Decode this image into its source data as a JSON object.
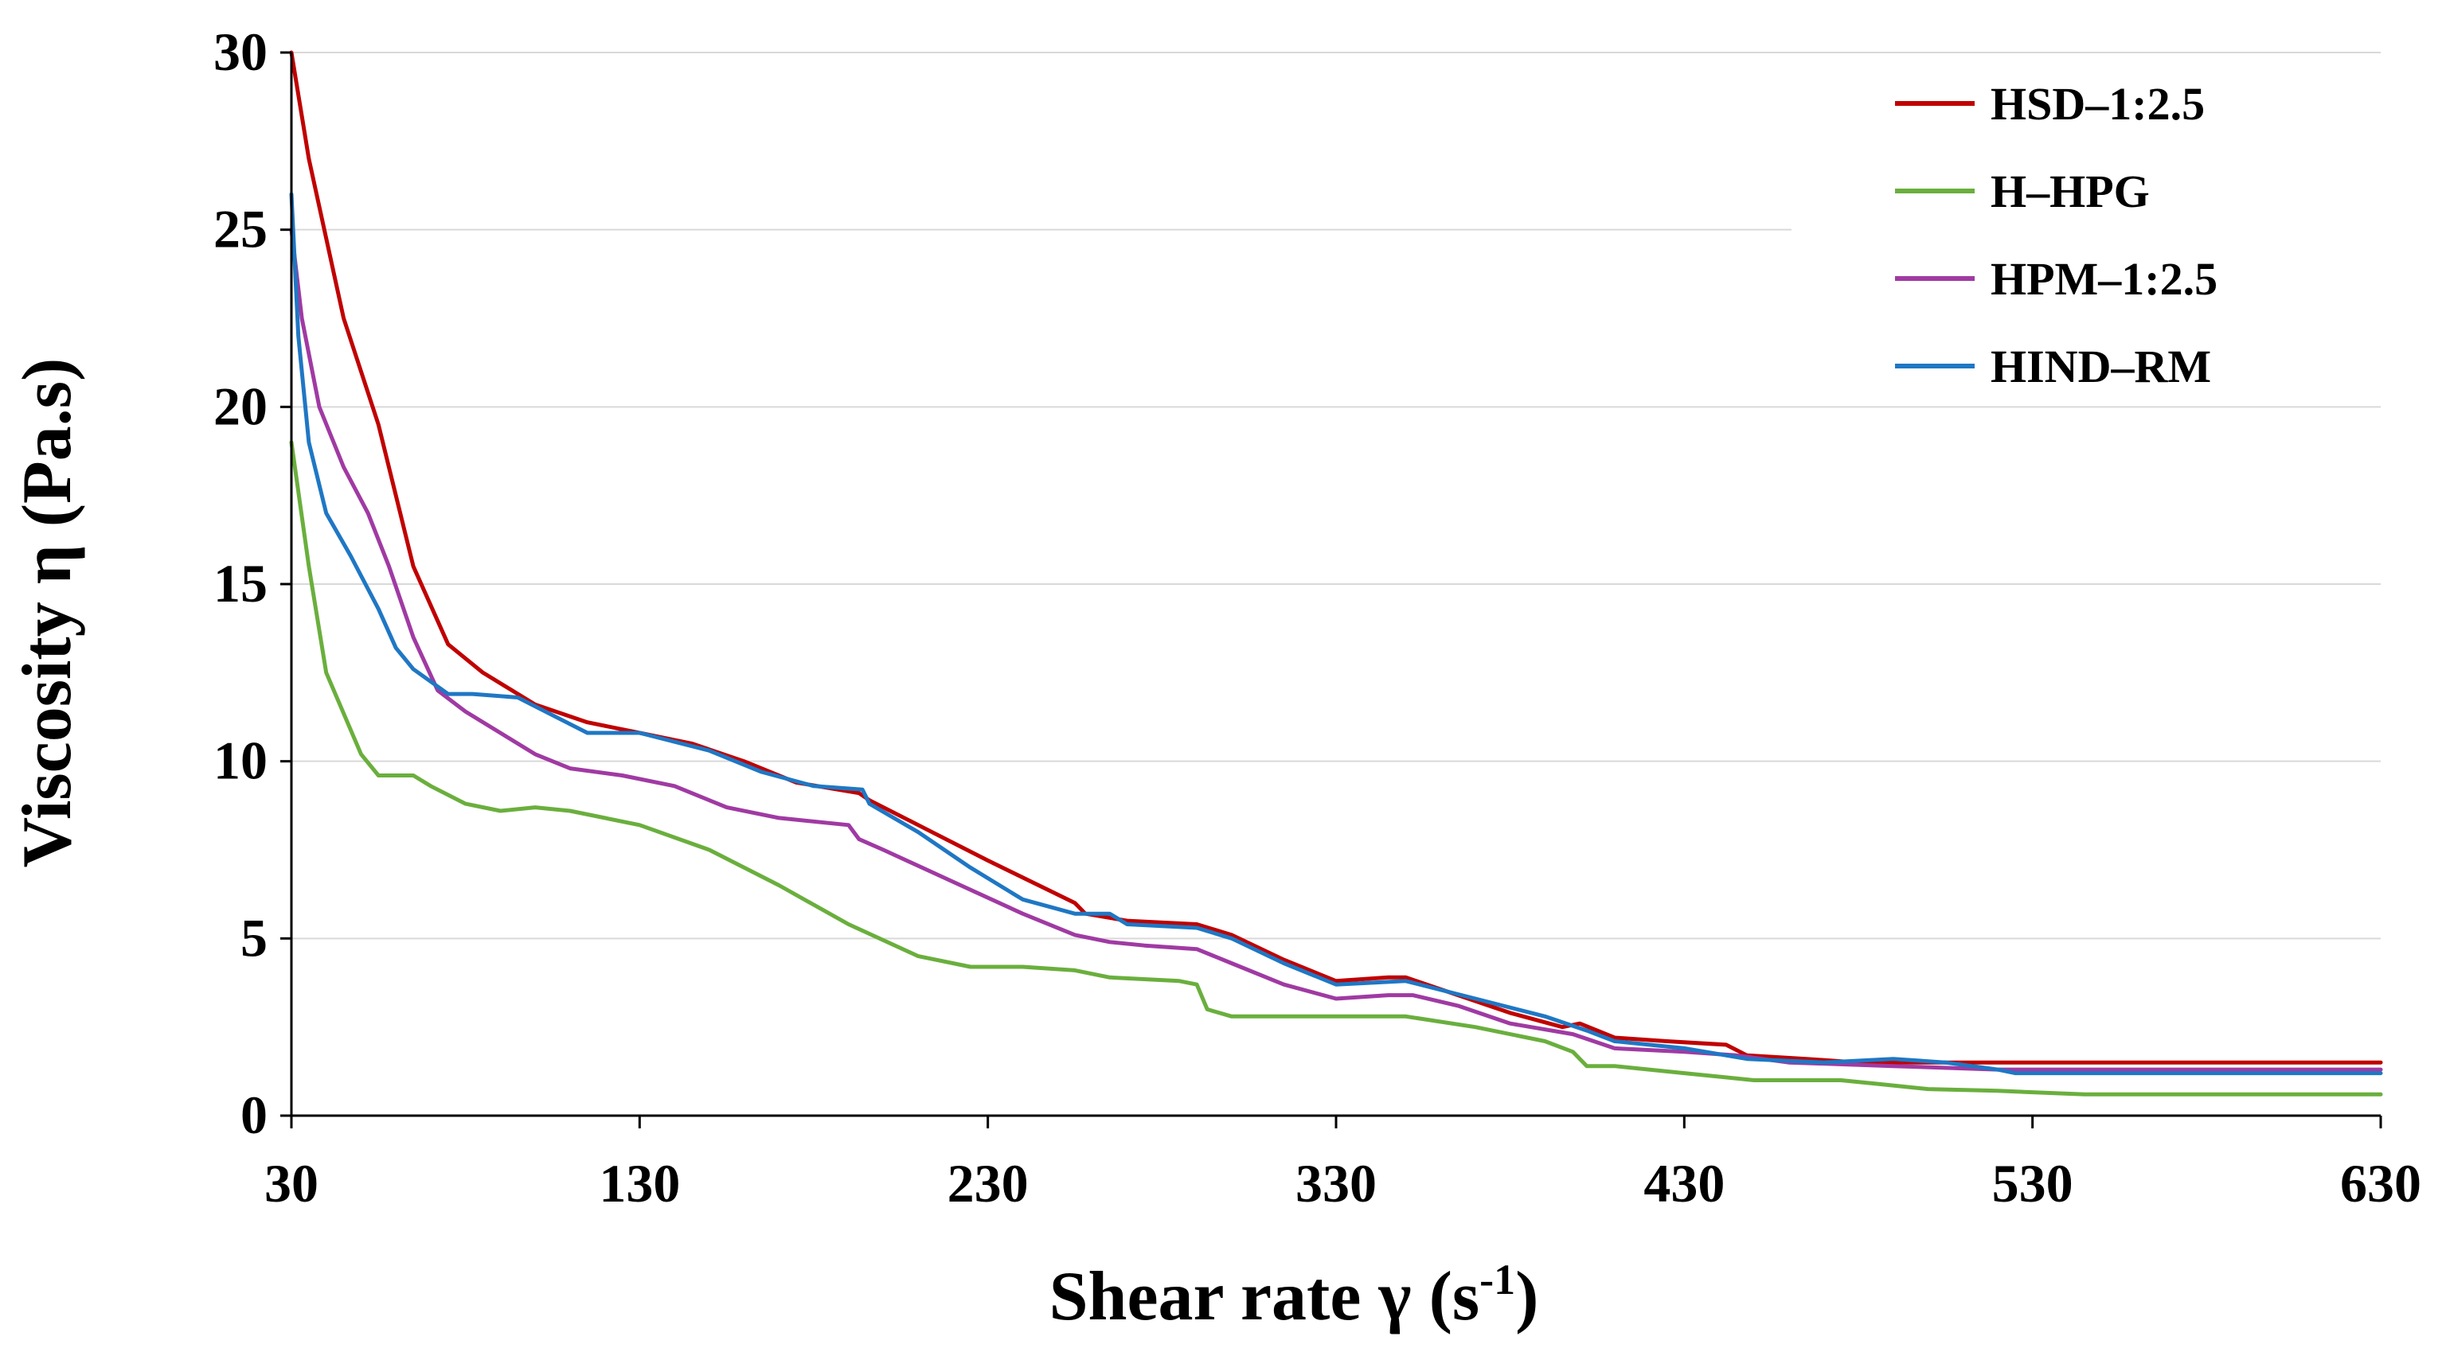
{
  "chart_data": {
    "type": "line",
    "title": "",
    "xlabel": "Shear rate γ (s",
    "xlabel_superscript": "-1",
    "xlabel_suffix": ")",
    "ylabel": "Viscosity η (Pa.s)",
    "xlim": [
      30,
      630
    ],
    "ylim": [
      0,
      30
    ],
    "x_ticks": [
      30,
      130,
      230,
      330,
      430,
      530,
      630
    ],
    "y_ticks": [
      0,
      5,
      10,
      15,
      20,
      25,
      30
    ],
    "grid": true,
    "legend_position": "top-right",
    "series": [
      {
        "name": "HSD–1:2.5",
        "color": "#c00000",
        "x": [
          30,
          35,
          45,
          55,
          65,
          75,
          85,
          100,
          115,
          130,
          145,
          160,
          175,
          193,
          196,
          210,
          230,
          255,
          258,
          270,
          290,
          300,
          315,
          330,
          345,
          350,
          365,
          380,
          395,
          400,
          410,
          425,
          442,
          448,
          465,
          480,
          500,
          530,
          580,
          630
        ],
        "y": [
          30,
          27,
          22.5,
          19.5,
          15.5,
          13.3,
          12.5,
          11.6,
          11.1,
          10.8,
          10.5,
          10.0,
          9.4,
          9.1,
          8.9,
          8.2,
          7.2,
          6.0,
          5.7,
          5.5,
          5.4,
          5.1,
          4.4,
          3.8,
          3.9,
          3.9,
          3.4,
          2.9,
          2.5,
          2.6,
          2.2,
          2.1,
          2.0,
          1.7,
          1.6,
          1.5,
          1.5,
          1.5,
          1.5,
          1.5
        ]
      },
      {
        "name": "H–HPG",
        "color": "#6aaf3d",
        "x": [
          30,
          35,
          40,
          50,
          55,
          65,
          70,
          80,
          90,
          100,
          110,
          130,
          150,
          170,
          190,
          210,
          225,
          240,
          255,
          265,
          285,
          290,
          293,
          300,
          320,
          350,
          370,
          390,
          398,
          402,
          410,
          430,
          450,
          475,
          485,
          500,
          520,
          545,
          630
        ],
        "y": [
          19,
          15.5,
          12.5,
          10.2,
          9.6,
          9.6,
          9.3,
          8.8,
          8.6,
          8.7,
          8.6,
          8.2,
          7.5,
          6.5,
          5.4,
          4.5,
          4.2,
          4.2,
          4.1,
          3.9,
          3.8,
          3.7,
          3.0,
          2.8,
          2.8,
          2.8,
          2.5,
          2.1,
          1.8,
          1.4,
          1.4,
          1.2,
          1.0,
          1.0,
          0.9,
          0.75,
          0.7,
          0.6,
          0.6
        ]
      },
      {
        "name": "HPM–1:2.5",
        "color": "#a03aa3",
        "x": [
          30,
          33,
          38,
          45,
          52,
          58,
          65,
          72,
          80,
          90,
          100,
          110,
          125,
          140,
          155,
          170,
          190,
          193,
          200,
          220,
          240,
          255,
          265,
          275,
          290,
          300,
          315,
          330,
          345,
          352,
          365,
          380,
          398,
          410,
          430,
          445,
          460,
          490,
          520,
          630
        ],
        "y": [
          25,
          22.5,
          20,
          18.3,
          17,
          15.5,
          13.5,
          12,
          11.4,
          10.8,
          10.2,
          9.8,
          9.6,
          9.3,
          8.7,
          8.4,
          8.2,
          7.8,
          7.5,
          6.6,
          5.7,
          5.1,
          4.9,
          4.8,
          4.7,
          4.3,
          3.7,
          3.3,
          3.4,
          3.4,
          3.1,
          2.6,
          2.3,
          1.9,
          1.8,
          1.7,
          1.5,
          1.4,
          1.3,
          1.3
        ]
      },
      {
        "name": "HIND–RM",
        "color": "#1f77c4",
        "x": [
          30,
          32,
          35,
          40,
          47,
          55,
          60,
          65,
          75,
          82,
          95,
          105,
          115,
          130,
          150,
          165,
          180,
          194,
          196,
          210,
          225,
          240,
          255,
          265,
          270,
          290,
          300,
          315,
          330,
          350,
          370,
          390,
          402,
          410,
          430,
          448,
          470,
          490,
          505,
          520,
          525,
          630
        ],
        "y": [
          26,
          22,
          19,
          17,
          15.8,
          14.3,
          13.2,
          12.6,
          11.9,
          11.9,
          11.8,
          11.3,
          10.8,
          10.8,
          10.3,
          9.7,
          9.3,
          9.2,
          8.8,
          8.0,
          7.0,
          6.1,
          5.7,
          5.7,
          5.4,
          5.3,
          5.0,
          4.3,
          3.7,
          3.8,
          3.3,
          2.8,
          2.4,
          2.1,
          1.9,
          1.6,
          1.5,
          1.6,
          1.5,
          1.3,
          1.2,
          1.2
        ]
      }
    ]
  }
}
